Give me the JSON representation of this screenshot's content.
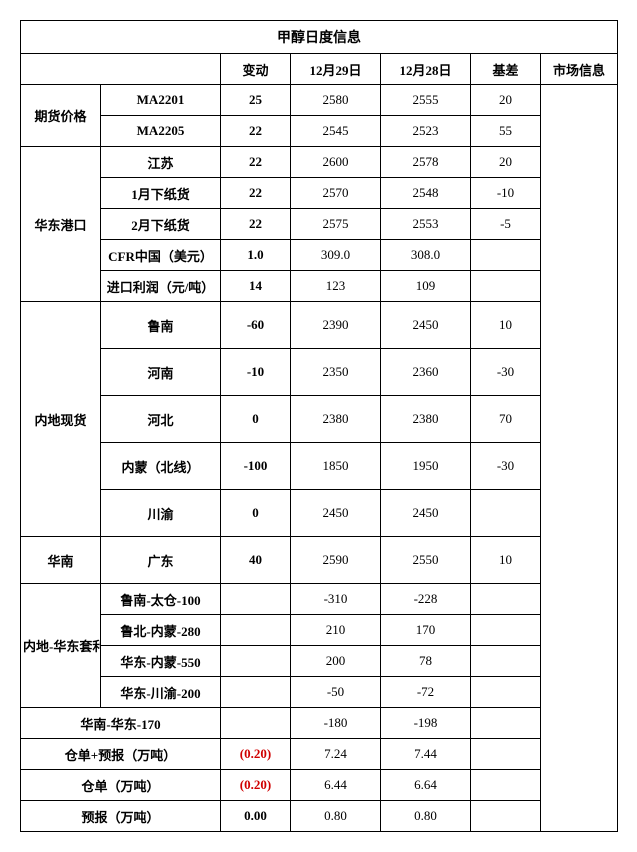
{
  "title": "甲醇日度信息",
  "columns": {
    "change": "变动",
    "d1": "12月29日",
    "d2": "12月28日",
    "basis": "基差",
    "market": "市场信息"
  },
  "sections": {
    "futures": {
      "label": "期货价格",
      "rows": [
        {
          "name": "MA2201",
          "change": "25",
          "v1": "2580",
          "v2": "2555",
          "basis": "20"
        },
        {
          "name": "MA2205",
          "change": "22",
          "v1": "2545",
          "v2": "2523",
          "basis": "55"
        }
      ]
    },
    "huadong_port": {
      "label": "华东港口",
      "rows": [
        {
          "name": "江苏",
          "change": "22",
          "v1": "2600",
          "v2": "2578",
          "basis": "20"
        },
        {
          "name": "1月下纸货",
          "change": "22",
          "v1": "2570",
          "v2": "2548",
          "basis": "-10"
        },
        {
          "name": "2月下纸货",
          "change": "22",
          "v1": "2575",
          "v2": "2553",
          "basis": "-5"
        },
        {
          "name": "CFR中国（美元）",
          "change": "1.0",
          "v1": "309.0",
          "v2": "308.0",
          "basis": ""
        },
        {
          "name": "进口利润（元/吨）",
          "change": "14",
          "v1": "123",
          "v2": "109",
          "basis": ""
        }
      ]
    },
    "inland_spot": {
      "label": "内地现货",
      "rows": [
        {
          "name": "鲁南",
          "change": "-60",
          "v1": "2390",
          "v2": "2450",
          "basis": "10"
        },
        {
          "name": "河南",
          "change": "-10",
          "v1": "2350",
          "v2": "2360",
          "basis": "-30"
        },
        {
          "name": "河北",
          "change": "0",
          "v1": "2380",
          "v2": "2380",
          "basis": "70"
        },
        {
          "name": "内蒙（北线）",
          "change": "-100",
          "v1": "1850",
          "v2": "1950",
          "basis": "-30"
        },
        {
          "name": "川渝",
          "change": "0",
          "v1": "2450",
          "v2": "2450",
          "basis": ""
        }
      ]
    },
    "huanan": {
      "label": "华南",
      "row": {
        "name": "广东",
        "change": "40",
        "v1": "2590",
        "v2": "2550",
        "basis": "10"
      }
    },
    "arb_window": {
      "label": "内地-华东套利窗口",
      "rows": [
        {
          "name": "鲁南-太仓-100",
          "change": "",
          "v1": "-310",
          "v2": "-228",
          "basis": ""
        },
        {
          "name": "鲁北-内蒙-280",
          "change": "",
          "v1": "210",
          "v2": "170",
          "basis": ""
        },
        {
          "name": "华东-内蒙-550",
          "change": "",
          "v1": "200",
          "v2": "78",
          "basis": ""
        },
        {
          "name": "华东-川渝-200",
          "change": "",
          "v1": "-50",
          "v2": "-72",
          "basis": ""
        }
      ]
    },
    "huanan_huadong": {
      "name": "华南-华东-170",
      "change": "",
      "v1": "-180",
      "v2": "-198",
      "basis": ""
    },
    "warrant_forecast": {
      "name": "仓单+预报（万吨）",
      "change": "(0.20)",
      "neg": true,
      "v1": "7.24",
      "v2": "7.44",
      "basis": ""
    },
    "warrant": {
      "name": "仓单（万吨）",
      "change": "(0.20)",
      "neg": true,
      "v1": "6.44",
      "v2": "6.64",
      "basis": ""
    },
    "forecast": {
      "name": "预报（万吨）",
      "change": "0.00",
      "neg": false,
      "v1": "0.80",
      "v2": "0.80",
      "basis": ""
    }
  }
}
